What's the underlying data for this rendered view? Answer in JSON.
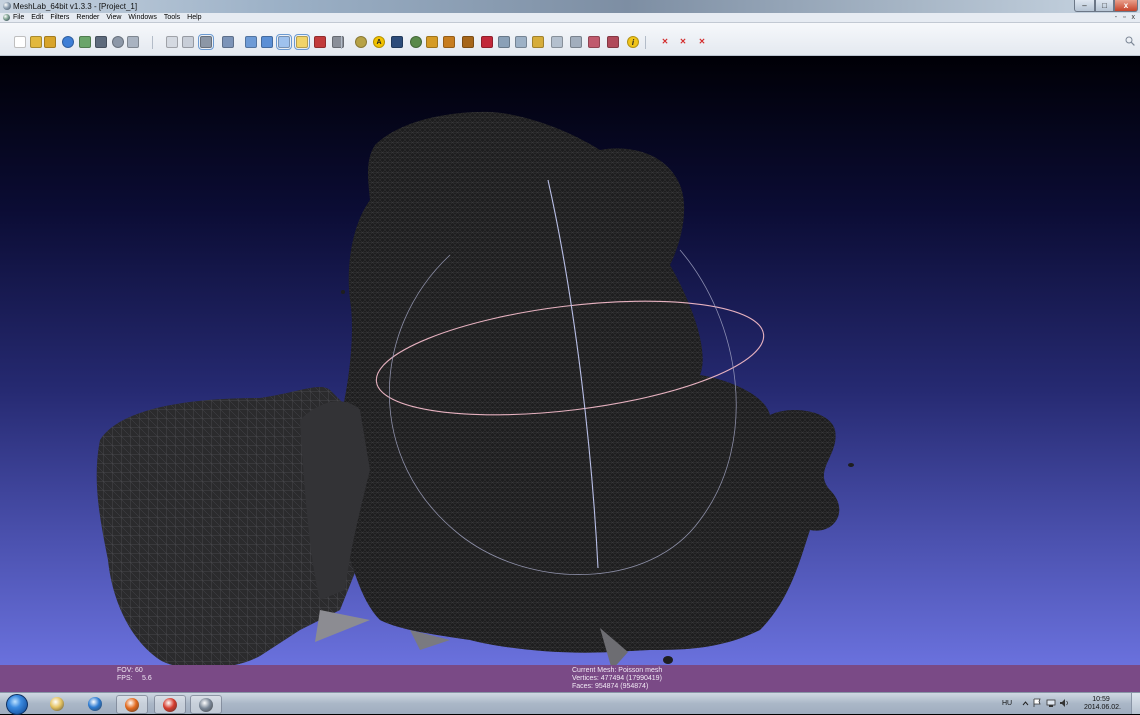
{
  "window": {
    "title": "MeshLab_64bit v1.3.3 - [Project_1]",
    "controls": {
      "minimize": "–",
      "maximize": "□",
      "close": "x"
    }
  },
  "menubar": {
    "items": [
      "File",
      "Edit",
      "Filters",
      "Render",
      "View",
      "Windows",
      "Tools",
      "Help"
    ],
    "mdi_controls": "- ▫ x"
  },
  "toolbar": {
    "icons": [
      {
        "name": "new-project-icon",
        "color": "#ffffff"
      },
      {
        "name": "open-project-icon",
        "color": "#e2b83d"
      },
      {
        "name": "import-mesh-icon",
        "color": "#d8a42a"
      },
      {
        "name": "reload-icon",
        "color": "#3f7fd6"
      },
      {
        "name": "export-mesh-icon",
        "color": "#6aa56a"
      },
      {
        "name": "save-snapshot-icon",
        "color": "#5d6a7c"
      },
      {
        "name": "layer-icon",
        "color": "#8d98a8"
      },
      {
        "name": "shield-icon",
        "color": "#a9b3c1"
      },
      {
        "name": "bounding-box-icon",
        "color": "#d4d9e1"
      },
      {
        "name": "points-icon",
        "color": "#c8ced8"
      },
      {
        "name": "wireframe-icon",
        "color": "#8c97a6"
      },
      {
        "name": "hidden-lines-icon",
        "color": "#7c94b8"
      },
      {
        "name": "flat-lines-icon",
        "color": "#6e9bd6"
      },
      {
        "name": "flat-icon",
        "color": "#5b8fd5"
      },
      {
        "name": "smooth-icon",
        "color": "#9fc2ee"
      },
      {
        "name": "lighting-icon",
        "color": "#f1d46a"
      },
      {
        "name": "fancy-light-icon",
        "color": "#c23b3b"
      },
      {
        "name": "double-side-icon",
        "color": "#8a8f99"
      },
      {
        "name": "compass-icon",
        "color": "#b7a246"
      },
      {
        "name": "annotation-icon",
        "color": "#f2c200"
      },
      {
        "name": "show-layer-icon",
        "color": "#2d4c7a"
      },
      {
        "name": "globe-icon",
        "color": "#5a8a4a"
      },
      {
        "name": "measure-icon",
        "color": "#d59b25"
      },
      {
        "name": "pick-points-icon",
        "color": "#c77d20"
      },
      {
        "name": "paint-icon",
        "color": "#a6661a"
      },
      {
        "name": "manual-align-icon",
        "color": "#c2283a"
      },
      {
        "name": "select-faces-icon",
        "color": "#8aa0b7"
      },
      {
        "name": "select-vertices-icon",
        "color": "#9db1c6"
      },
      {
        "name": "select-connected-icon",
        "color": "#d6ad3b"
      },
      {
        "name": "delete-faces-icon",
        "color": "#b4c0ce"
      },
      {
        "name": "delete-vertices-icon",
        "color": "#a2aebd"
      },
      {
        "name": "color-selection-icon",
        "color": "#c05a6d"
      },
      {
        "name": "paint-selection-icon",
        "color": "#b04a5a"
      },
      {
        "name": "info-icon",
        "color": "#f0c419"
      },
      {
        "name": "remove-tool-icon",
        "color": "#d32b2b"
      },
      {
        "name": "remove-points-icon",
        "color": "#d32b2b"
      },
      {
        "name": "remove-faces-icon",
        "color": "#d32b2b"
      }
    ]
  },
  "viewport": {
    "background_top": "#000006",
    "background_bottom": "#6a71dd",
    "mesh_color": "#1e1e1f",
    "trackball_vertical_color": "#b9bfe6",
    "trackball_horizontal_color": "#e6b1bf"
  },
  "infobar": {
    "fov": "FOV: 60",
    "fps_label": "FPS:",
    "fps_value": "5.6",
    "current_mesh": "Current Mesh: Poisson mesh",
    "vertices": "Vertices: 477494 (17990419)",
    "faces": "Faces: 954874 (954874)"
  },
  "taskbar": {
    "apps": [
      {
        "name": "explorer-icon",
        "color": "#e5c361"
      },
      {
        "name": "outlook-icon",
        "color": "#2d7bd2"
      },
      {
        "name": "firefox-icon",
        "color": "#e36a1e"
      },
      {
        "name": "chrome-icon",
        "color": "#d53b2d"
      },
      {
        "name": "meshlab-icon",
        "color": "#7a8797"
      }
    ],
    "language": "HU",
    "time": "10:59",
    "date": "2014.06.02."
  }
}
